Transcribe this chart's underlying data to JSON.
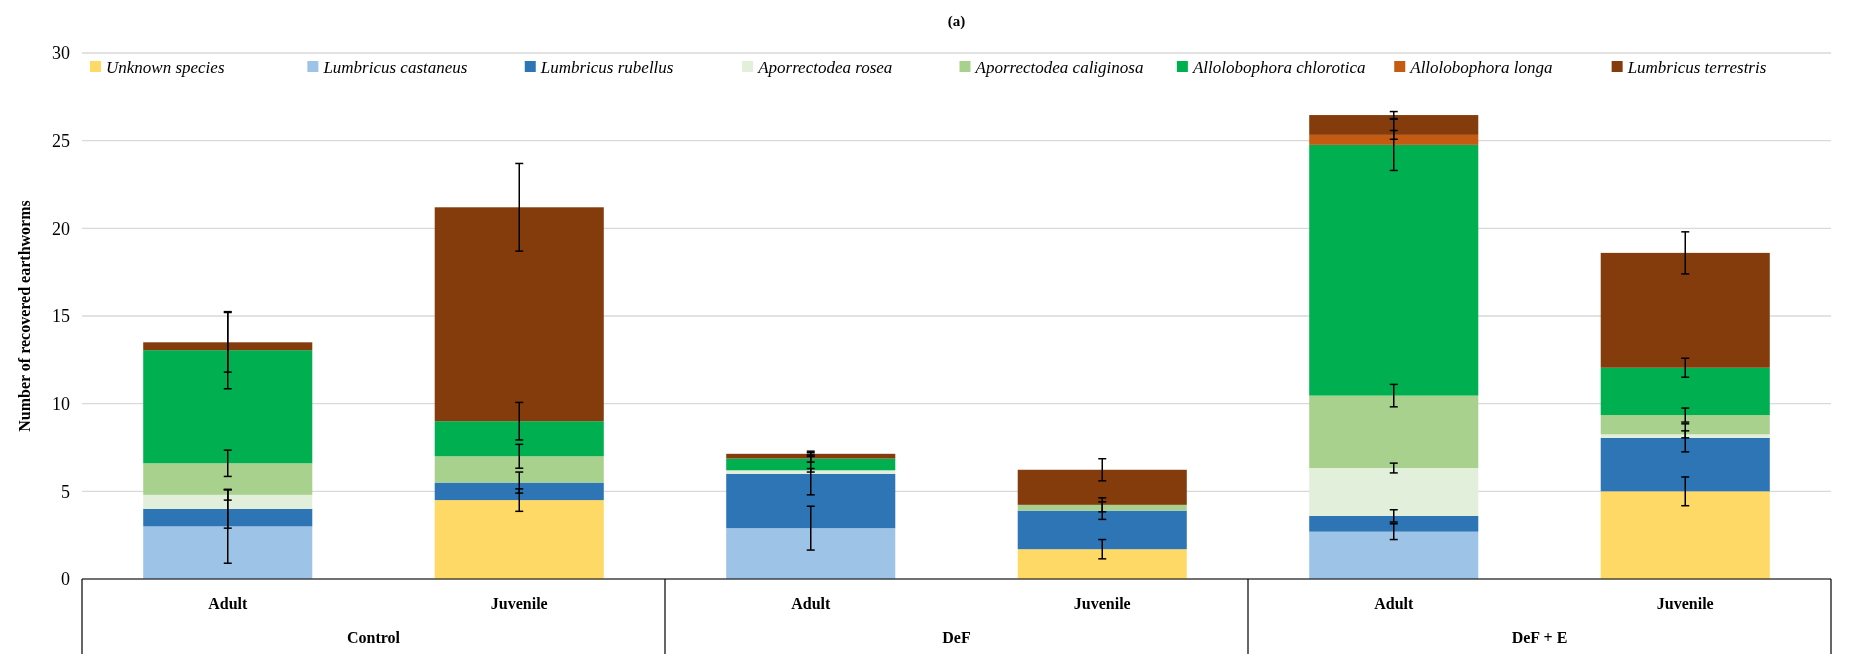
{
  "chart_data": {
    "type": "bar",
    "stacked": true,
    "title": "(a)",
    "ylabel": "Number of recovered earthworms",
    "categories": [
      "Adult",
      "Juvenile",
      "Adult",
      "Juvenile",
      "Adult",
      "Juvenile"
    ],
    "annotations": [
      "Control",
      "DeF",
      "DeF + E"
    ],
    "ylim": [
      0,
      30
    ],
    "yticks": [
      0,
      5,
      10,
      15,
      20,
      25,
      30
    ],
    "grid": "y",
    "legend": "top",
    "series": [
      {
        "name": "Unknown species",
        "color": "#ffd966",
        "values": [
          0,
          4.5,
          0,
          1.7,
          0,
          5.0
        ],
        "errors": [
          null,
          0.64,
          null,
          0.55,
          null,
          0.82
        ]
      },
      {
        "name": "Lumbricus castaneus",
        "color": "#9dc3e6",
        "values": [
          3.0,
          0,
          2.9,
          0,
          2.7,
          0
        ],
        "errors": [
          2.1,
          null,
          1.25,
          null,
          0.45,
          null
        ]
      },
      {
        "name": "Lumbricus rubellus",
        "color": "#2e75b6",
        "values": [
          1.0,
          1.0,
          3.1,
          2.2,
          0.9,
          3.05
        ],
        "errors": [
          1.1,
          0.6,
          1.2,
          0.5,
          0.35,
          0.8
        ]
      },
      {
        "name": "Aporrectodea rosea",
        "color": "#e2efda",
        "values": [
          0.8,
          0,
          0.2,
          0,
          2.73,
          0.2
        ],
        "errors": [
          0.3,
          null,
          0.1,
          null,
          0.28,
          0.2
        ]
      },
      {
        "name": "Aporrectodea caliginosa",
        "color": "#a9d18e",
        "values": [
          1.8,
          1.5,
          0,
          0.33,
          4.13,
          1.1
        ],
        "errors": [
          0.75,
          0.68,
          null,
          0.4,
          0.64,
          0.4
        ]
      },
      {
        "name": "Allolobophora chlorotica",
        "color": "#00b050",
        "values": [
          6.45,
          2.0,
          0.67,
          0,
          14.3,
          2.7
        ],
        "errors": [
          2.2,
          1.07,
          0.2,
          null,
          1.46,
          0.54
        ]
      },
      {
        "name": "Allolobophora longa",
        "color": "#c55a11",
        "values": [
          0,
          0,
          0,
          0,
          0.57,
          0
        ],
        "errors": [
          null,
          null,
          null,
          null,
          0.25,
          null
        ]
      },
      {
        "name": "Lumbricus terrestris",
        "color": "#843c0c",
        "values": [
          0.45,
          12.2,
          0.27,
          2.0,
          1.13,
          6.55
        ],
        "errors": [
          1.7,
          2.5,
          0.15,
          0.63,
          0.2,
          1.2
        ]
      }
    ]
  }
}
